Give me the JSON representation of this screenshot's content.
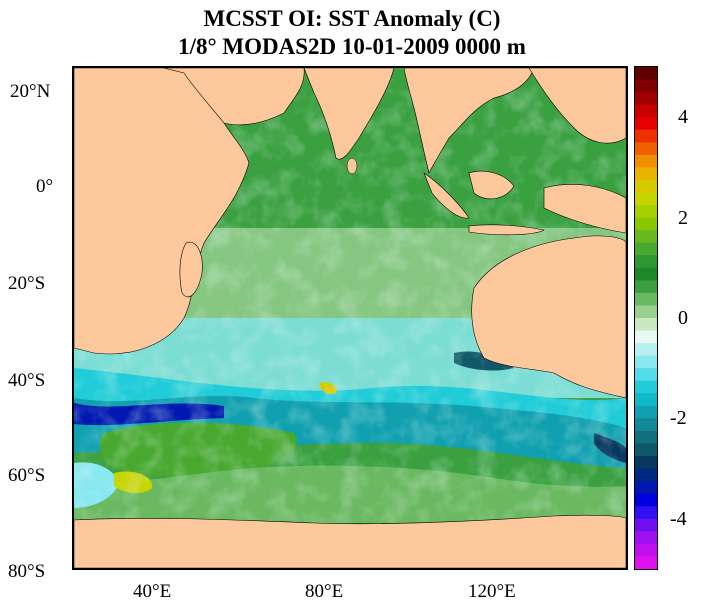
{
  "title": {
    "line1": "MCSST OI:  SST Anomaly (C)",
    "line2": "1/8° MODAS2D 10-01-2009 0000 m"
  },
  "axes": {
    "lat_ticks": [
      "20°N",
      "0°",
      "20°S",
      "40°S",
      "60°S",
      "80°S"
    ],
    "lon_ticks": [
      "40°E",
      "80°E",
      "120°E"
    ],
    "lon_range": [
      20,
      150
    ],
    "lat_range": [
      -80,
      25
    ]
  },
  "colorbar": {
    "range": [
      -5,
      5
    ],
    "tick_labels": [
      "4",
      "2",
      "0",
      "-2",
      "-4"
    ],
    "colors": [
      "#600000",
      "#800000",
      "#a00000",
      "#c80000",
      "#e60000",
      "#f03000",
      "#f06000",
      "#f09000",
      "#e8b400",
      "#d8c800",
      "#c8d400",
      "#a8d000",
      "#88c800",
      "#68b820",
      "#48a830",
      "#2c9830",
      "#1c8828",
      "#3aa040",
      "#6ab860",
      "#98d090",
      "#c8e8c0",
      "#e8f8f0",
      "#b8f0f0",
      "#88e8f0",
      "#50dce8",
      "#20ccd8",
      "#10b8c8",
      "#10a0b0",
      "#108898",
      "#107080",
      "#105868",
      "#083860",
      "#002880",
      "#0018b0",
      "#0000e0",
      "#3010f0",
      "#7010f0",
      "#a010f0",
      "#c010f0",
      "#e010f0"
    ]
  },
  "map_colors": {
    "land": "#fcc89c",
    "ocean_green": "#3aa040",
    "ocean_light": "#98d090",
    "ocean_cyan": "#50dce8",
    "ocean_blue": "#108898",
    "ocean_deep": "#0018b0"
  }
}
